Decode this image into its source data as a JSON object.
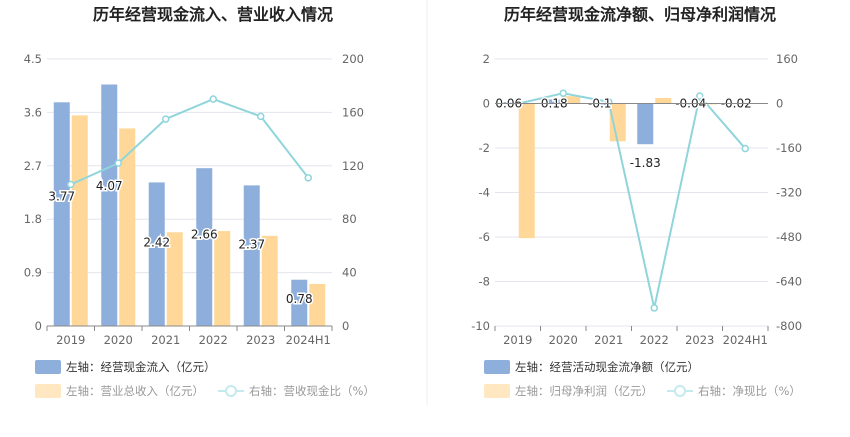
{
  "chart_data": [
    {
      "type": "bar",
      "title": "历年经营现金流入、营业收入情况",
      "categories": [
        "2019",
        "2020",
        "2021",
        "2022",
        "2023",
        "2024H1"
      ],
      "y_left": {
        "ticks": [
          "0",
          "0.9",
          "1.8",
          "2.7",
          "3.6",
          "4.5"
        ],
        "ylim": [
          0,
          4.5
        ]
      },
      "y_right": {
        "ticks": [
          "0",
          "40",
          "80",
          "120",
          "160",
          "200"
        ],
        "ylim": [
          0,
          200
        ]
      },
      "series": [
        {
          "name": "左轴：经营现金流入（亿元）",
          "type": "bar",
          "axis": "left",
          "color": "#8eaedc",
          "values": [
            3.77,
            4.07,
            2.42,
            2.66,
            2.37,
            0.78
          ],
          "labels": [
            "3.77",
            "4.07",
            "2.42",
            "2.66",
            "2.37",
            "0.78"
          ]
        },
        {
          "name": "左轴：营业总收入（亿元）",
          "type": "bar",
          "axis": "left",
          "color": "#ffd899",
          "values": [
            3.55,
            3.33,
            1.58,
            1.6,
            1.52,
            0.71
          ]
        },
        {
          "name": "右轴：营收现金比（%）",
          "type": "line",
          "axis": "right",
          "color": "#8fd5dc",
          "values": [
            106,
            122,
            155,
            170,
            157,
            111
          ]
        }
      ],
      "legend_placement": "bottom-left",
      "grid": true
    },
    {
      "type": "bar",
      "title": "历年经营现金流净额、归母净利润情况",
      "categories": [
        "2019",
        "2020",
        "2021",
        "2022",
        "2023",
        "2024H1"
      ],
      "y_left": {
        "ticks": [
          "-10",
          "-8",
          "-6",
          "-4",
          "-2",
          "0",
          "2"
        ],
        "ylim": [
          -10,
          2
        ]
      },
      "y_right": {
        "ticks": [
          "-800",
          "-640",
          "-480",
          "-320",
          "-160",
          "0",
          "160"
        ],
        "ylim": [
          -800,
          160
        ]
      },
      "series": [
        {
          "name": "左轴：经营活动现金流净额（亿元）",
          "type": "bar",
          "axis": "left",
          "color": "#8eaedc",
          "values": [
            0.06,
            0.18,
            -0.1,
            -1.83,
            -0.04,
            -0.02
          ],
          "labels": [
            "0.06",
            "0.18",
            "-0.1",
            "-1.83",
            "-0.04",
            "-0.02"
          ]
        },
        {
          "name": "左轴：归母净利润（亿元）",
          "type": "bar",
          "axis": "left",
          "color": "#ffd899",
          "values": [
            -6.05,
            0.33,
            -1.7,
            0.25,
            -0.04,
            0
          ]
        },
        {
          "name": "右轴：净现比（%）",
          "type": "line",
          "axis": "right",
          "color": "#8fd5dc",
          "values": [
            -1,
            37,
            6,
            -735,
            27,
            -162
          ]
        }
      ],
      "legend_placement": "bottom-left",
      "grid": true
    }
  ]
}
